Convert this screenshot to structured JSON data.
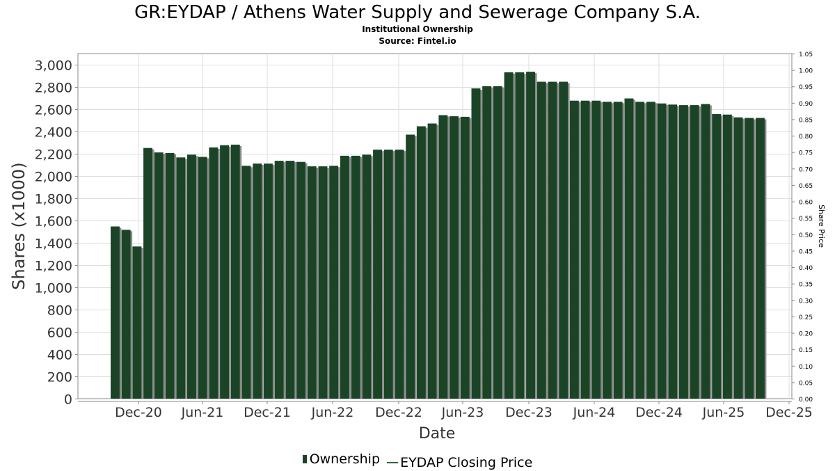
{
  "title": "GR:EYDAP / Athens Water Supply and Sewerage Company S.A.",
  "subtitle": "Institutional Ownership",
  "source": "Source: Fintel.io",
  "colors": {
    "bar": "#1b4427",
    "bar_shadow": "#8a8a8a",
    "grid": "#dddddd",
    "price_line": "#336633"
  },
  "chart_data": {
    "type": "bar",
    "title": "GR:EYDAP / Athens Water Supply and Sewerage Company S.A.",
    "xlabel": "Date",
    "ylabel": "Shares (x1000)",
    "y2label": "Share Price",
    "ylim": [
      0,
      3100
    ],
    "y2lim": [
      0,
      1.05
    ],
    "grid": true,
    "legend_position": "bottom",
    "x_ticks": [
      "Dec-20",
      "Jun-21",
      "Dec-21",
      "Jun-22",
      "Dec-22",
      "Jun-23",
      "Dec-23",
      "Jun-24",
      "Dec-24",
      "Jun-25",
      "Dec-25"
    ],
    "y_ticks": [
      0,
      200,
      400,
      600,
      800,
      1000,
      1200,
      1400,
      1600,
      1800,
      2000,
      2200,
      2400,
      2600,
      2800,
      3000
    ],
    "y_tick_labels": [
      "0",
      "200",
      "400",
      "600",
      "800",
      "1,000",
      "1,200",
      "1,400",
      "1,600",
      "1,800",
      "2,000",
      "2,200",
      "2,400",
      "2,600",
      "2,800",
      "3,000"
    ],
    "y2_ticks": [
      "0.00",
      "0.05",
      "0.10",
      "0.15",
      "0.20",
      "0.25",
      "0.30",
      "0.35",
      "0.40",
      "0.45",
      "0.50",
      "0.55",
      "0.60",
      "0.65",
      "0.70",
      "0.75",
      "0.80",
      "0.85",
      "0.90",
      "0.95",
      "1.00",
      "1.05"
    ],
    "series": [
      {
        "name": "Ownership",
        "values": [
          1550,
          1520,
          1370,
          2255,
          2215,
          2210,
          2170,
          2195,
          2175,
          2260,
          2280,
          2285,
          2095,
          2115,
          2115,
          2140,
          2140,
          2130,
          2090,
          2090,
          2095,
          2185,
          2185,
          2195,
          2240,
          2240,
          2240,
          2375,
          2450,
          2475,
          2550,
          2540,
          2535,
          2790,
          2810,
          2810,
          2935,
          2935,
          2940,
          2850,
          2850,
          2850,
          2680,
          2680,
          2680,
          2670,
          2670,
          2700,
          2670,
          2670,
          2655,
          2645,
          2640,
          2640,
          2650,
          2560,
          2555,
          2530,
          2525,
          2525
        ]
      },
      {
        "name": "EYDAP Closing Price",
        "values": []
      }
    ]
  },
  "legend": {
    "ownership": "Ownership",
    "price": "EYDAP Closing Price"
  }
}
